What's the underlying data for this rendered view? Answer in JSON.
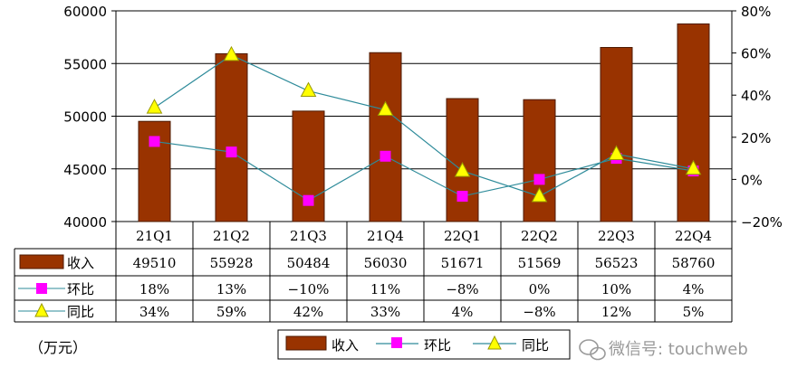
{
  "chart_data": {
    "type": "bar",
    "categories": [
      "21Q1",
      "21Q2",
      "21Q3",
      "21Q4",
      "22Q1",
      "22Q2",
      "22Q3",
      "22Q4"
    ],
    "series": [
      {
        "name": "收入",
        "kind": "bar",
        "axis": "left",
        "values": [
          49510,
          55928,
          50484,
          56030,
          51671,
          51569,
          56523,
          58760
        ],
        "labels": [
          "49510",
          "55928",
          "50484",
          "56030",
          "51671",
          "51569",
          "56523",
          "58760"
        ]
      },
      {
        "name": "环比",
        "kind": "line",
        "marker": "square",
        "axis": "right",
        "values": [
          18,
          13,
          -10,
          11,
          -8,
          0,
          10,
          4
        ],
        "labels": [
          "18%",
          "13%",
          "−10%",
          "11%",
          "−8%",
          "0%",
          "10%",
          "4%"
        ]
      },
      {
        "name": "同比",
        "kind": "line",
        "marker": "triangle",
        "axis": "right",
        "values": [
          34,
          59,
          42,
          33,
          4,
          -8,
          12,
          5
        ],
        "labels": [
          "34%",
          "59%",
          "42%",
          "33%",
          "4%",
          "−8%",
          "12%",
          "5%"
        ]
      }
    ],
    "left_axis": {
      "ylim": [
        40000,
        60000
      ],
      "ticks": [
        "40000",
        "45000",
        "50000",
        "55000",
        "60000"
      ],
      "tick_values": [
        40000,
        45000,
        50000,
        55000,
        60000
      ]
    },
    "right_axis": {
      "ylim": [
        -20,
        80
      ],
      "ticks": [
        "−20%",
        "0%",
        "20%",
        "40%",
        "60%",
        "80%"
      ],
      "tick_values": [
        -20,
        0,
        20,
        40,
        60,
        80
      ]
    },
    "unit": "（万元）",
    "legend": {
      "placement": "bottom",
      "items": [
        "收入",
        "环比",
        "同比"
      ]
    },
    "grid": true,
    "colors": {
      "bar": "#993300",
      "bar_border": "#4d1a00",
      "qoq_marker": "#ff00ff",
      "yoy_marker": "#ffff00",
      "yoy_marker_border": "#999900",
      "line": "#2e8b9a",
      "grid": "#000000"
    }
  },
  "watermark": "微信号: touchweb"
}
